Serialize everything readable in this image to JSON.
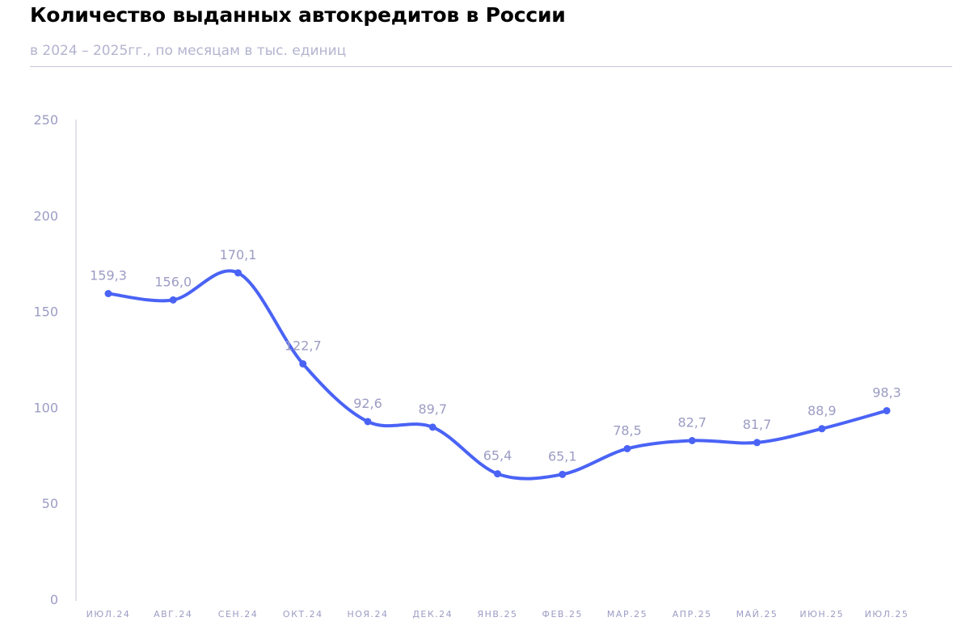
{
  "header": {
    "title": "Количество выданных автокредитов в России",
    "subtitle": "в 2024 – 2025гг., по месяцам в тыс. единиц"
  },
  "colors": {
    "line": "#4a63f5",
    "axis_text": "#9c9cc4",
    "axis_line": "#c6c6d6",
    "subtitle": "#b4b4d0"
  },
  "chart_data": {
    "type": "line",
    "title": "Количество выданных автокредитов в России",
    "subtitle": "в 2024 – 2025гг., по месяцам в тыс. единиц",
    "xlabel": "",
    "ylabel": "",
    "categories": [
      "ИЮЛ.24",
      "АВГ.24",
      "СЕН.24",
      "ОКТ.24",
      "НОЯ.24",
      "ДЕК.24",
      "ЯНВ.25",
      "ФЕВ.25",
      "МАР.25",
      "АПР.25",
      "МАЙ.25",
      "ИЮН.25",
      "ИЮЛ.25"
    ],
    "values": [
      159.3,
      156.0,
      170.1,
      122.7,
      92.6,
      89.7,
      65.4,
      65.1,
      78.5,
      82.7,
      81.7,
      88.9,
      98.3
    ],
    "data_labels": [
      "159,3",
      "156,0",
      "170,1",
      "122,7",
      "92,6",
      "89,7",
      "65,4",
      "65,1",
      "78,5",
      "82,7",
      "81,7",
      "88,9",
      "98,3"
    ],
    "ylim": [
      0,
      250
    ],
    "yticks": [
      0,
      50,
      100,
      150,
      200,
      250
    ],
    "ytick_labels": [
      "0",
      "50",
      "100",
      "150",
      "200",
      "250"
    ],
    "grid": false,
    "legend": "none",
    "smooth": true
  }
}
